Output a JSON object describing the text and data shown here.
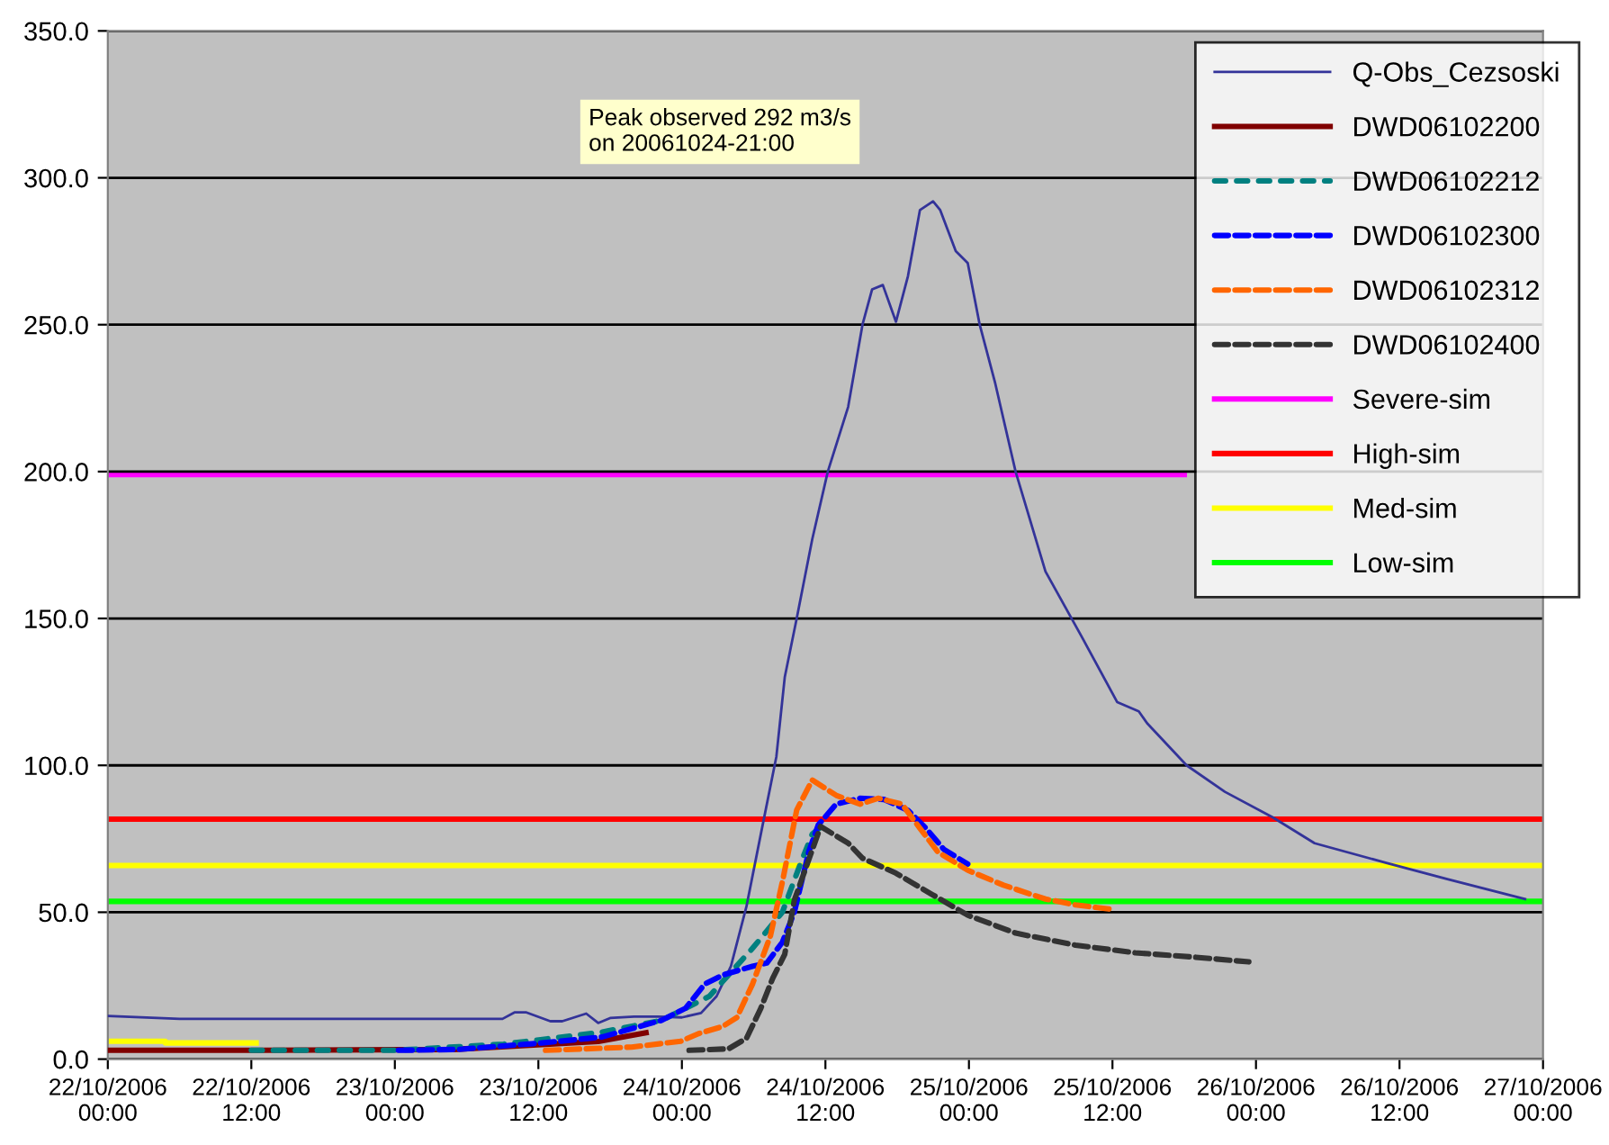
{
  "chart_data": {
    "type": "line",
    "annotations": [
      "Peak observed 292 m3/s\non 20061024-21:00"
    ],
    "xlim": [
      "2006-10-22T00:00",
      "2006-10-27T00:00"
    ],
    "xticks": [
      {
        "value": "2006-10-22T00:00",
        "label": "22/10/2006\n00:00"
      },
      {
        "value": "2006-10-22T12:00",
        "label": "22/10/2006\n12:00"
      },
      {
        "value": "2006-10-23T00:00",
        "label": "23/10/2006\n00:00"
      },
      {
        "value": "2006-10-23T12:00",
        "label": "23/10/2006\n12:00"
      },
      {
        "value": "2006-10-24T00:00",
        "label": "24/10/2006\n00:00"
      },
      {
        "value": "2006-10-24T12:00",
        "label": "24/10/2006\n12:00"
      },
      {
        "value": "2006-10-25T00:00",
        "label": "25/10/2006\n00:00"
      },
      {
        "value": "2006-10-25T12:00",
        "label": "25/10/2006\n12:00"
      },
      {
        "value": "2006-10-26T00:00",
        "label": "26/10/2006\n00:00"
      },
      {
        "value": "2006-10-26T12:00",
        "label": "26/10/2006\n12:00"
      },
      {
        "value": "2006-10-27T00:00",
        "label": "27/10/2006\n00:00"
      }
    ],
    "ylim": [
      0,
      350
    ],
    "yticks": [
      {
        "value": 0,
        "label": "0.0"
      },
      {
        "value": 50,
        "label": "50.0"
      },
      {
        "value": 100,
        "label": "100.0"
      },
      {
        "value": 150,
        "label": "150.0"
      },
      {
        "value": 200,
        "label": "200.0"
      },
      {
        "value": 250,
        "label": "250.0"
      },
      {
        "value": 300,
        "label": "300.0"
      },
      {
        "value": 350,
        "label": "350.0"
      }
    ],
    "grid": "y",
    "legend": "top right",
    "marker": "none",
    "series": [
      {
        "name": "Q-Obs_Cezsoski",
        "color": "#333399",
        "line_style": "solid",
        "x": [
          "2006-10-22T00:00",
          "2006-10-22T06:00",
          "2006-10-23T09:00",
          "2006-10-23T10:00",
          "2006-10-23T11:00",
          "2006-10-23T13:00",
          "2006-10-23T14:00",
          "2006-10-23T16:00",
          "2006-10-23T17:00",
          "2006-10-23T18:00",
          "2006-10-23T20:00",
          "2006-10-23T22:00",
          "2006-10-24T00:00",
          "2006-10-24T01:36",
          "2006-10-24T02:54",
          "2006-10-24T04:06",
          "2006-10-24T05:24",
          "2006-10-24T06:36",
          "2006-10-24T07:54",
          "2006-10-24T08:36",
          "2006-10-24T09:36",
          "2006-10-24T10:54",
          "2006-10-24T12:12",
          "2006-10-24T13:54",
          "2006-10-24T15:06",
          "2006-10-24T15:54",
          "2006-10-24T16:48",
          "2006-10-24T17:54",
          "2006-10-24T18:54",
          "2006-10-24T19:54",
          "2006-10-24T21:00",
          "2006-10-24T21:36",
          "2006-10-24T22:54",
          "2006-10-24T23:54",
          "2006-10-25T00:54",
          "2006-10-25T02:12",
          "2006-10-25T03:54",
          "2006-10-25T06:24",
          "2006-10-25T09:24",
          "2006-10-25T12:24",
          "2006-10-25T14:12",
          "2006-10-25T14:54",
          "2006-10-25T18:12",
          "2006-10-25T21:24",
          "2006-10-26T01:24",
          "2006-10-26T04:54",
          "2006-10-26T10:54",
          "2006-10-26T16:00",
          "2006-10-26T22:30"
        ],
        "values": [
          14.7,
          13.7,
          13.7,
          15.9,
          15.9,
          12.9,
          12.9,
          15.5,
          12.3,
          14.0,
          14.5,
          14.5,
          14.2,
          15.7,
          21.4,
          31.6,
          52,
          76.6,
          103,
          130,
          150,
          177,
          200,
          222,
          250,
          262,
          263.5,
          251,
          266.5,
          289,
          292,
          289,
          275,
          271,
          250,
          230,
          200,
          166,
          144,
          121.5,
          118.4,
          114.3,
          100,
          91,
          82.3,
          73.5,
          66.8,
          61.3,
          54.5
        ]
      },
      {
        "name": "DWD06102200",
        "color": "#800000",
        "line_style": "solid",
        "x": [
          "2006-10-22T00:00",
          "2006-10-22T12:48",
          "2006-10-23T05:00",
          "2006-10-23T17:00",
          "2006-10-23T21:00"
        ],
        "values": [
          3.0,
          3.0,
          3.3,
          6.0,
          9.0
        ]
      },
      {
        "name": "DWD06102212",
        "color": "#008080",
        "line_style": "dotted",
        "x": [
          "2006-10-22T12:00",
          "2006-10-23T00:00",
          "2006-10-23T09:06",
          "2006-10-23T17:18",
          "2006-10-23T22:18",
          "2006-10-24T02:18",
          "2006-10-24T05:54",
          "2006-10-24T08:24",
          "2006-10-24T09:54",
          "2006-10-24T10:54",
          "2006-10-24T11:36"
        ],
        "values": [
          3.0,
          3.0,
          5.1,
          9.2,
          13.2,
          21.4,
          37.7,
          50,
          66.4,
          76.6,
          79
        ]
      },
      {
        "name": "DWD06102300",
        "color": "#0000ff",
        "line_style": "dashed",
        "x": [
          "2006-10-23T00:18",
          "2006-10-23T05:18",
          "2006-10-23T12:18",
          "2006-10-23T17:18",
          "2006-10-23T22:18",
          "2006-10-24T00:18",
          "2006-10-24T01:54",
          "2006-10-24T03:24",
          "2006-10-24T05:54",
          "2006-10-24T07:06",
          "2006-10-24T08:24",
          "2006-10-24T09:24",
          "2006-10-24T10:36",
          "2006-10-24T11:24",
          "2006-10-24T12:54",
          "2006-10-24T14:54",
          "2006-10-24T16:54",
          "2006-10-24T18:54",
          "2006-10-24T20:24",
          "2006-10-24T21:54",
          "2006-10-24T23:54"
        ],
        "values": [
          3.0,
          3.3,
          5.5,
          7.5,
          13.2,
          17.3,
          25.5,
          28.6,
          31.6,
          32.7,
          39.8,
          50,
          70.5,
          79.7,
          86.8,
          88.8,
          88.4,
          84.7,
          78.6,
          71.4,
          66.4
        ]
      },
      {
        "name": "DWD06102312",
        "color": "#ff6600",
        "line_style": "dashed",
        "x": [
          "2006-10-23T12:36",
          "2006-10-23T19:48",
          "2006-10-23T23:54",
          "2006-10-24T01:24",
          "2006-10-24T03:24",
          "2006-10-24T04:36",
          "2006-10-24T05:54",
          "2006-10-24T07:24",
          "2006-10-24T08:24",
          "2006-10-24T09:36",
          "2006-10-24T10:54",
          "2006-10-24T12:54",
          "2006-10-24T14:54",
          "2006-10-24T16:24",
          "2006-10-24T18:24",
          "2006-10-24T19:54",
          "2006-10-24T21:24",
          "2006-10-24T23:54",
          "2006-10-25T02:54",
          "2006-10-25T06:24",
          "2006-10-25T08:54",
          "2006-10-25T11:54"
        ],
        "values": [
          3.0,
          4.1,
          6.1,
          8.7,
          11.1,
          14.2,
          25.5,
          41.9,
          60.3,
          84.8,
          95,
          89.8,
          86.8,
          88.8,
          86.8,
          78.6,
          70.5,
          64.3,
          59.2,
          54.5,
          52.5,
          51
        ]
      },
      {
        "name": "DWD06102400",
        "color": "#333333",
        "line_style": "dashed",
        "x": [
          "2006-10-24T00:36",
          "2006-10-24T03:54",
          "2006-10-24T05:24",
          "2006-10-24T06:36",
          "2006-10-24T07:36",
          "2006-10-24T08:36",
          "2006-10-24T09:24",
          "2006-10-24T11:36",
          "2006-10-24T13:54",
          "2006-10-24T15:06",
          "2006-10-24T17:54",
          "2006-10-24T20:54",
          "2006-10-24T23:54",
          "2006-10-25T03:54",
          "2006-10-25T08:54",
          "2006-10-25T13:54",
          "2006-10-25T18:54",
          "2006-10-25T23:24"
        ],
        "values": [
          3.0,
          3.5,
          7.1,
          17.3,
          27.6,
          35.7,
          54.1,
          79.2,
          73.5,
          68.4,
          63.3,
          56.1,
          49,
          42.9,
          38.8,
          36.2,
          34.7,
          33.1
        ]
      },
      {
        "name": "Severe-sim",
        "color": "#ff00ff",
        "line_style": "solid",
        "x": [
          "2006-10-22T00:00",
          "2006-10-25T18:00"
        ],
        "values": [
          199,
          199
        ]
      },
      {
        "name": "High-sim",
        "color": "#ff0000",
        "line_style": "solid",
        "x": [
          "2006-10-22T00:00",
          "2006-10-27T00:00"
        ],
        "values": [
          81.7,
          81.7
        ]
      },
      {
        "name": "Med-sim",
        "color": "#ffff00",
        "line_style": "solid",
        "x": [
          "2006-10-22T00:00",
          "2006-10-27T00:00"
        ],
        "values": [
          65.9,
          65.9
        ]
      },
      {
        "name": "Low-sim",
        "color": "#00ff00",
        "line_style": "solid",
        "x": [
          "2006-10-22T00:00",
          "2006-10-27T00:00"
        ],
        "values": [
          53.7,
          53.7
        ]
      },
      {
        "color": "#ffff00",
        "line_style": "solid",
        "x": [
          "2006-10-22T00:00",
          "2006-10-22T04:48",
          "2006-10-22T04:49",
          "2006-10-22T12:24"
        ],
        "values": [
          6.1,
          6.1,
          5.5,
          5.5
        ]
      }
    ]
  }
}
